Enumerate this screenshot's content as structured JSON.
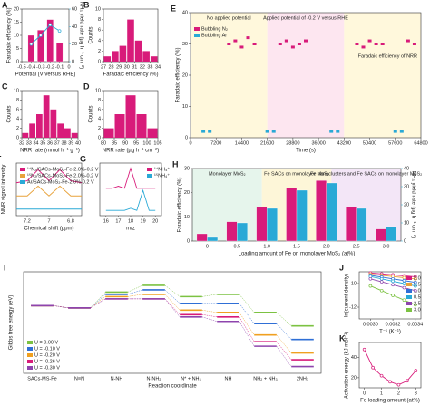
{
  "chart_data": [
    {
      "type": "bar",
      "panel": "A",
      "xlabel": "Potential (V versus RHE)",
      "ylabel": "Faradaic efficiency (%)",
      "y2label": "NH₃ yield rate (µg h⁻¹ cm⁻²)",
      "x": [
        -0.4,
        -0.3,
        -0.2,
        -0.1
      ],
      "xlim": [
        -0.5,
        0
      ],
      "xticks": [
        -0.5,
        -0.4,
        -0.3,
        -0.2,
        -0.1,
        0
      ],
      "ylim": [
        0,
        20
      ],
      "yticks": [
        0,
        5,
        10,
        15,
        20
      ],
      "y2lim": [
        0,
        60
      ],
      "y2ticks": [
        0,
        20,
        40,
        60
      ],
      "series": [
        {
          "name": "Faradaic efficiency",
          "kind": "bar",
          "color": "#d81b7a",
          "values": [
            10,
            12,
            16,
            7
          ]
        },
        {
          "name": "NH₃ yield rate",
          "kind": "line",
          "axis": "y2",
          "color": "#29a9d6",
          "values": [
            20,
            30,
            42,
            35
          ]
        }
      ]
    },
    {
      "type": "histogram",
      "panel": "B",
      "xlabel": "Faradaic efficiency (%)",
      "ylabel": "Counts",
      "bins": [
        27,
        28,
        29,
        30,
        31,
        32,
        33,
        34
      ],
      "counts": [
        1,
        2,
        3,
        8,
        4,
        2,
        1
      ],
      "color": "#d81b7a",
      "xlim": [
        27,
        34
      ],
      "xticks": [
        27,
        28,
        29,
        30,
        31,
        32,
        33,
        34
      ],
      "ylim": [
        0,
        10
      ],
      "yticks": [
        0,
        2,
        4,
        6,
        8,
        10
      ]
    },
    {
      "type": "histogram",
      "panel": "C",
      "xlabel": "NRR rate (mmol h⁻¹ g⁻¹)",
      "ylabel": "Counts",
      "bins": [
        32,
        33,
        34,
        35,
        36,
        37,
        38,
        39,
        40
      ],
      "counts": [
        1,
        3,
        5,
        9,
        6,
        3,
        2,
        1
      ],
      "color": "#d81b7a",
      "xlim": [
        32,
        40
      ],
      "xticks": [
        32,
        33,
        34,
        35,
        36,
        37,
        38,
        39,
        40
      ],
      "ylim": [
        0,
        10
      ],
      "yticks": [
        0,
        2,
        4,
        6,
        8,
        10
      ]
    },
    {
      "type": "histogram",
      "panel": "D",
      "xlabel": "NRR rate (µg h⁻¹ cm⁻²)",
      "ylabel": "Counts",
      "bins": [
        80,
        85,
        90,
        95,
        100,
        105
      ],
      "counts": [
        2,
        5,
        9,
        5,
        2
      ],
      "color": "#d81b7a",
      "xlim": [
        80,
        105
      ],
      "xticks": [
        80,
        85,
        90,
        95,
        100,
        105
      ],
      "ylim": [
        0,
        10
      ],
      "yticks": [
        0,
        2,
        4,
        6,
        8,
        10
      ]
    },
    {
      "type": "scatter",
      "panel": "E",
      "xlabel": "Time (s)",
      "ylabel": "Faradaic efficiency (%)",
      "legend": "upper left",
      "annotations": [
        "No applied potential",
        "Applied potential of -0.2 V versus RHE",
        "Faradaic efficiency of NRR"
      ],
      "xlim": [
        0,
        64800
      ],
      "xticks": [
        0,
        7200,
        14400,
        21600,
        28800,
        36000,
        43200,
        50400,
        57600,
        64800
      ],
      "ylim": [
        0,
        40
      ],
      "yticks": [
        0,
        10,
        20,
        30,
        40
      ],
      "series": [
        {
          "name": "Bubbling N₂",
          "color": "#d81b7a",
          "x": [
            10800,
            12600,
            14400,
            16200,
            18000,
            25200,
            27000,
            28800,
            30600,
            32400,
            46800,
            48600,
            50400,
            52200,
            54000,
            61200,
            63000
          ],
          "values": [
            30,
            31,
            29,
            32,
            30,
            30,
            31,
            29,
            30,
            31,
            30,
            29,
            31,
            30,
            30,
            31,
            30
          ]
        },
        {
          "name": "Bubbling Ar",
          "color": "#29a9d6",
          "x": [
            3600,
            5400,
            21600,
            23400,
            39600,
            41400,
            57600,
            59400
          ],
          "values": [
            2,
            2,
            2,
            2,
            2,
            2,
            2,
            2
          ]
        }
      ]
    },
    {
      "type": "line",
      "panel": "F",
      "xlabel": "Chemical shift (ppm)",
      "ylabel": "NMR signal intensity",
      "legend": "upper left",
      "x": [
        7.3,
        7.2,
        7.1,
        7.0,
        6.9,
        6.8,
        6.7
      ],
      "xlim": [
        7.3,
        6.7
      ],
      "xticks": [
        7.2,
        7.0,
        6.8
      ],
      "ylim": [
        0,
        8
      ],
      "yticks": [],
      "series": [
        {
          "name": "¹⁴N₂/SACs-MoS₂-Fe-2.0%-0.2 V",
          "color": "#d81b7a",
          "values": [
            5,
            5.3,
            7,
            5.3,
            7,
            5.3,
            5
          ]
        },
        {
          "name": "¹⁵N₂/SACs-MoS₂-Fe-2.0%-0.2 V",
          "color": "#e8a23a",
          "values": [
            3,
            3,
            4.5,
            3,
            4.5,
            3,
            3
          ]
        },
        {
          "name": "Ar/SACs-MoS₂-Fe-2.0%-0.2 V",
          "color": "#29a9d6",
          "values": [
            1,
            1,
            1,
            1,
            1,
            1,
            1
          ]
        }
      ]
    },
    {
      "type": "line",
      "panel": "G",
      "xlabel": "m/z",
      "legend": "right",
      "x": [
        16,
        16.5,
        17,
        17.5,
        18,
        18.5,
        19,
        19.5,
        20
      ],
      "xlim": [
        15.5,
        20.5
      ],
      "xticks": [
        16,
        17,
        18,
        19,
        20
      ],
      "ylim": [
        0,
        10
      ],
      "yticks": [],
      "series": [
        {
          "name": "¹⁴NH₄⁺",
          "color": "#d81b7a",
          "values": [
            5.2,
            5.2,
            5.6,
            5.2,
            9,
            5.2,
            5.2,
            5.2,
            5.2
          ]
        },
        {
          "name": "¹⁵NH₄⁺",
          "color": "#29a9d6",
          "values": [
            1,
            1,
            1,
            1,
            1.4,
            1,
            4.8,
            1,
            1
          ]
        }
      ]
    },
    {
      "type": "bar",
      "panel": "H",
      "xlabel": "Loading amount of Fe on monolayer MoS₂ (at%)",
      "ylabel": "Faradaic efficiency (%)",
      "y2label": "NH₃ yield rate (µg h⁻¹ cm⁻²)",
      "annotations": [
        "Monolayer MoS₂",
        "Fe SACs on monolayer MoS₂",
        "Fe nanoclusters and Fe SACs on monolayer MoS₂"
      ],
      "categories": [
        "0",
        "0.5",
        "1.0",
        "1.5",
        "2.0",
        "2.5",
        "3.0"
      ],
      "ylim": [
        0,
        30
      ],
      "yticks": [
        0,
        10,
        20,
        30
      ],
      "y2lim": [
        0,
        40
      ],
      "y2ticks": [
        0,
        10,
        20,
        30,
        40
      ],
      "series": [
        {
          "name": "Faradaic efficiency",
          "kind": "bar",
          "color": "#d81b7a",
          "values": [
            3,
            8,
            14,
            22,
            25,
            14,
            5
          ]
        },
        {
          "name": "NH₃ yield rate",
          "kind": "bar",
          "axis": "y2",
          "color": "#29a9d6",
          "values": [
            2,
            10,
            18,
            28,
            32,
            18,
            8
          ]
        }
      ]
    },
    {
      "type": "step",
      "panel": "I",
      "xlabel": "Reaction coordinate",
      "ylabel": "Gibbs free energy (eV)",
      "legend": "lower left",
      "categories": [
        "SACs-MS-Fe",
        "N≡N",
        "N-NH",
        "N-NH₂",
        "N* + NH₃",
        "NH",
        "NH₂ + NH₃",
        "2NH₃"
      ],
      "ylim": [
        -3,
        1.5
      ],
      "yticks": [],
      "series": [
        {
          "name": "U = 0.00 V",
          "color": "#7cc242",
          "values": [
            0,
            -0.1,
            0.6,
            0.9,
            0.4,
            0.5,
            -0.3,
            -0.9
          ]
        },
        {
          "name": "U = -0.10 V",
          "color": "#2f6fd6",
          "values": [
            0,
            -0.1,
            0.5,
            0.7,
            0.1,
            0.1,
            -0.8,
            -1.5
          ]
        },
        {
          "name": "U = -0.20 V",
          "color": "#f0a020",
          "values": [
            0,
            -0.1,
            0.4,
            0.5,
            -0.2,
            -0.3,
            -1.3,
            -2.1
          ]
        },
        {
          "name": "U = -0.26 V",
          "color": "#d81b7a",
          "values": [
            0,
            -0.1,
            0.3,
            0.3,
            -0.4,
            -0.5,
            -1.6,
            -2.4
          ]
        },
        {
          "name": "U = -0.30 V",
          "color": "#8e44ad",
          "values": [
            0,
            -0.1,
            0.3,
            0.3,
            -0.5,
            -0.7,
            -1.8,
            -2.7
          ]
        }
      ]
    },
    {
      "type": "line",
      "panel": "J",
      "xlabel": "T⁻¹ (K⁻¹)",
      "ylabel": "ln(current density)",
      "legend": "right",
      "x": [
        0.003,
        0.0031,
        0.0032,
        0.0033,
        0.0034
      ],
      "xlim": [
        0.0029,
        0.00345
      ],
      "xticks": [
        {
          "value": 0.003,
          "label": "0.0030"
        },
        {
          "value": 0.0032,
          "label": "0.0032"
        },
        {
          "value": 0.0034,
          "label": "0.0034"
        }
      ],
      "ylim": [
        -13,
        -9
      ],
      "yticks": [
        -12,
        -10
      ],
      "series": [
        {
          "name": "2.0",
          "color": "#d81b7a",
          "values": [
            -9.1,
            -9.18,
            -9.26,
            -9.34,
            -9.42
          ]
        },
        {
          "name": "1.5",
          "color": "#e8a23a",
          "values": [
            -9.2,
            -9.3,
            -9.4,
            -9.5,
            -9.6
          ]
        },
        {
          "name": "1.0",
          "color": "#2f6fd6",
          "values": [
            -9.3,
            -9.45,
            -9.6,
            -9.75,
            -9.9
          ]
        },
        {
          "name": "0.5",
          "color": "#29a9d6",
          "values": [
            -9.4,
            -9.6,
            -9.8,
            -10.0,
            -10.2
          ]
        },
        {
          "name": "2.5",
          "color": "#8e44ad",
          "values": [
            -9.6,
            -9.85,
            -10.1,
            -10.35,
            -10.6
          ]
        },
        {
          "name": "3.0",
          "color": "#7cc242",
          "values": [
            -10.2,
            -10.6,
            -11.0,
            -11.4,
            -11.8
          ]
        }
      ]
    },
    {
      "type": "line",
      "panel": "K",
      "xlabel": "Fe loading amount (at%)",
      "ylabel": "Activation energy (kJ mol⁻¹)",
      "x": [
        0,
        0.5,
        1,
        1.5,
        2,
        2.5,
        3
      ],
      "xlim": [
        -0.3,
        3.3
      ],
      "xticks": [
        0,
        1,
        2,
        3
      ],
      "ylim": [
        10,
        55
      ],
      "yticks": [
        20,
        40
      ],
      "series": [
        {
          "name": "Activation energy",
          "color": "#d81b7a",
          "values": [
            48,
            30,
            22,
            16,
            13,
            17,
            27
          ]
        }
      ]
    }
  ]
}
